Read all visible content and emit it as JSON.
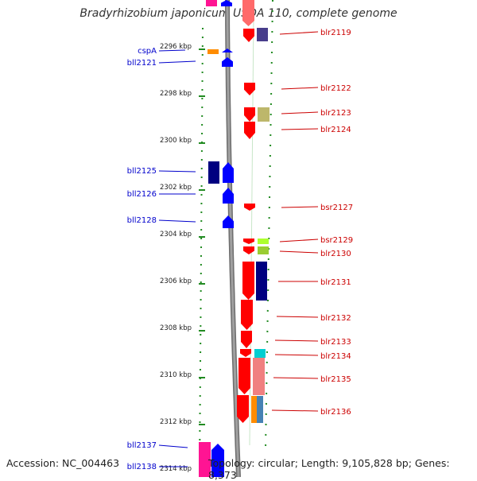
{
  "header": {
    "title": "Bradyrhizobium japonicum USDA 110, complete genome"
  },
  "footer": {
    "accession": "Accession: NC_004463",
    "info": "Topology: circular; Length: 9,105,828 bp; Genes: 8,373"
  },
  "colors": {
    "left_label": "#0000cc",
    "right_label": "#cc0000",
    "tick": "#228b22",
    "backbone": "#808080"
  },
  "scale": {
    "unit": "kbp",
    "ticks": [
      {
        "label": "2296 kbp",
        "kbp": 2296
      },
      {
        "label": "2298 kbp",
        "kbp": 2298
      },
      {
        "label": "2300 kbp",
        "kbp": 2300
      },
      {
        "label": "2302 kbp",
        "kbp": 2302
      },
      {
        "label": "2304 kbp",
        "kbp": 2304
      },
      {
        "label": "2306 kbp",
        "kbp": 2306
      },
      {
        "label": "2308 kbp",
        "kbp": 2308
      },
      {
        "label": "2310 kbp",
        "kbp": 2310
      },
      {
        "label": "2312 kbp",
        "kbp": 2312
      },
      {
        "label": "2314 kbp",
        "kbp": 2314
      }
    ]
  },
  "genes_left": [
    {
      "name": "cspA",
      "strand": "+",
      "color": "#ff8c00"
    },
    {
      "name": "bll2121",
      "strand": "-",
      "color": "#0000ff"
    },
    {
      "name": "bll2125",
      "strand": "-",
      "color": "#0000ff"
    },
    {
      "name": "bll2126",
      "strand": "-",
      "color": "#0000ff"
    },
    {
      "name": "bll2128",
      "strand": "-",
      "color": "#0000ff"
    },
    {
      "name": "bll2137",
      "strand": "-",
      "color": "#0000ff"
    },
    {
      "name": "bll2138",
      "strand": "-",
      "color": "#0000ff"
    }
  ],
  "genes_right": [
    {
      "name": "blr2119",
      "strand": "+",
      "color": "#ff0000"
    },
    {
      "name": "blr2122",
      "strand": "+",
      "color": "#ff0000"
    },
    {
      "name": "blr2123",
      "strand": "+",
      "color": "#ff0000"
    },
    {
      "name": "blr2124",
      "strand": "+",
      "color": "#ff0000"
    },
    {
      "name": "bsr2127",
      "strand": "+",
      "color": "#ff0000"
    },
    {
      "name": "bsr2129",
      "strand": "+",
      "color": "#ff0000"
    },
    {
      "name": "blr2130",
      "strand": "+",
      "color": "#ff0000"
    },
    {
      "name": "blr2131",
      "strand": "+",
      "color": "#ff0000"
    },
    {
      "name": "blr2132",
      "strand": "+",
      "color": "#ff0000"
    },
    {
      "name": "blr2133",
      "strand": "+",
      "color": "#ff0000"
    },
    {
      "name": "blr2134",
      "strand": "+",
      "color": "#ff0000"
    },
    {
      "name": "blr2135",
      "strand": "+",
      "color": "#ff0000"
    },
    {
      "name": "blr2136",
      "strand": "+",
      "color": "#ff0000"
    }
  ]
}
